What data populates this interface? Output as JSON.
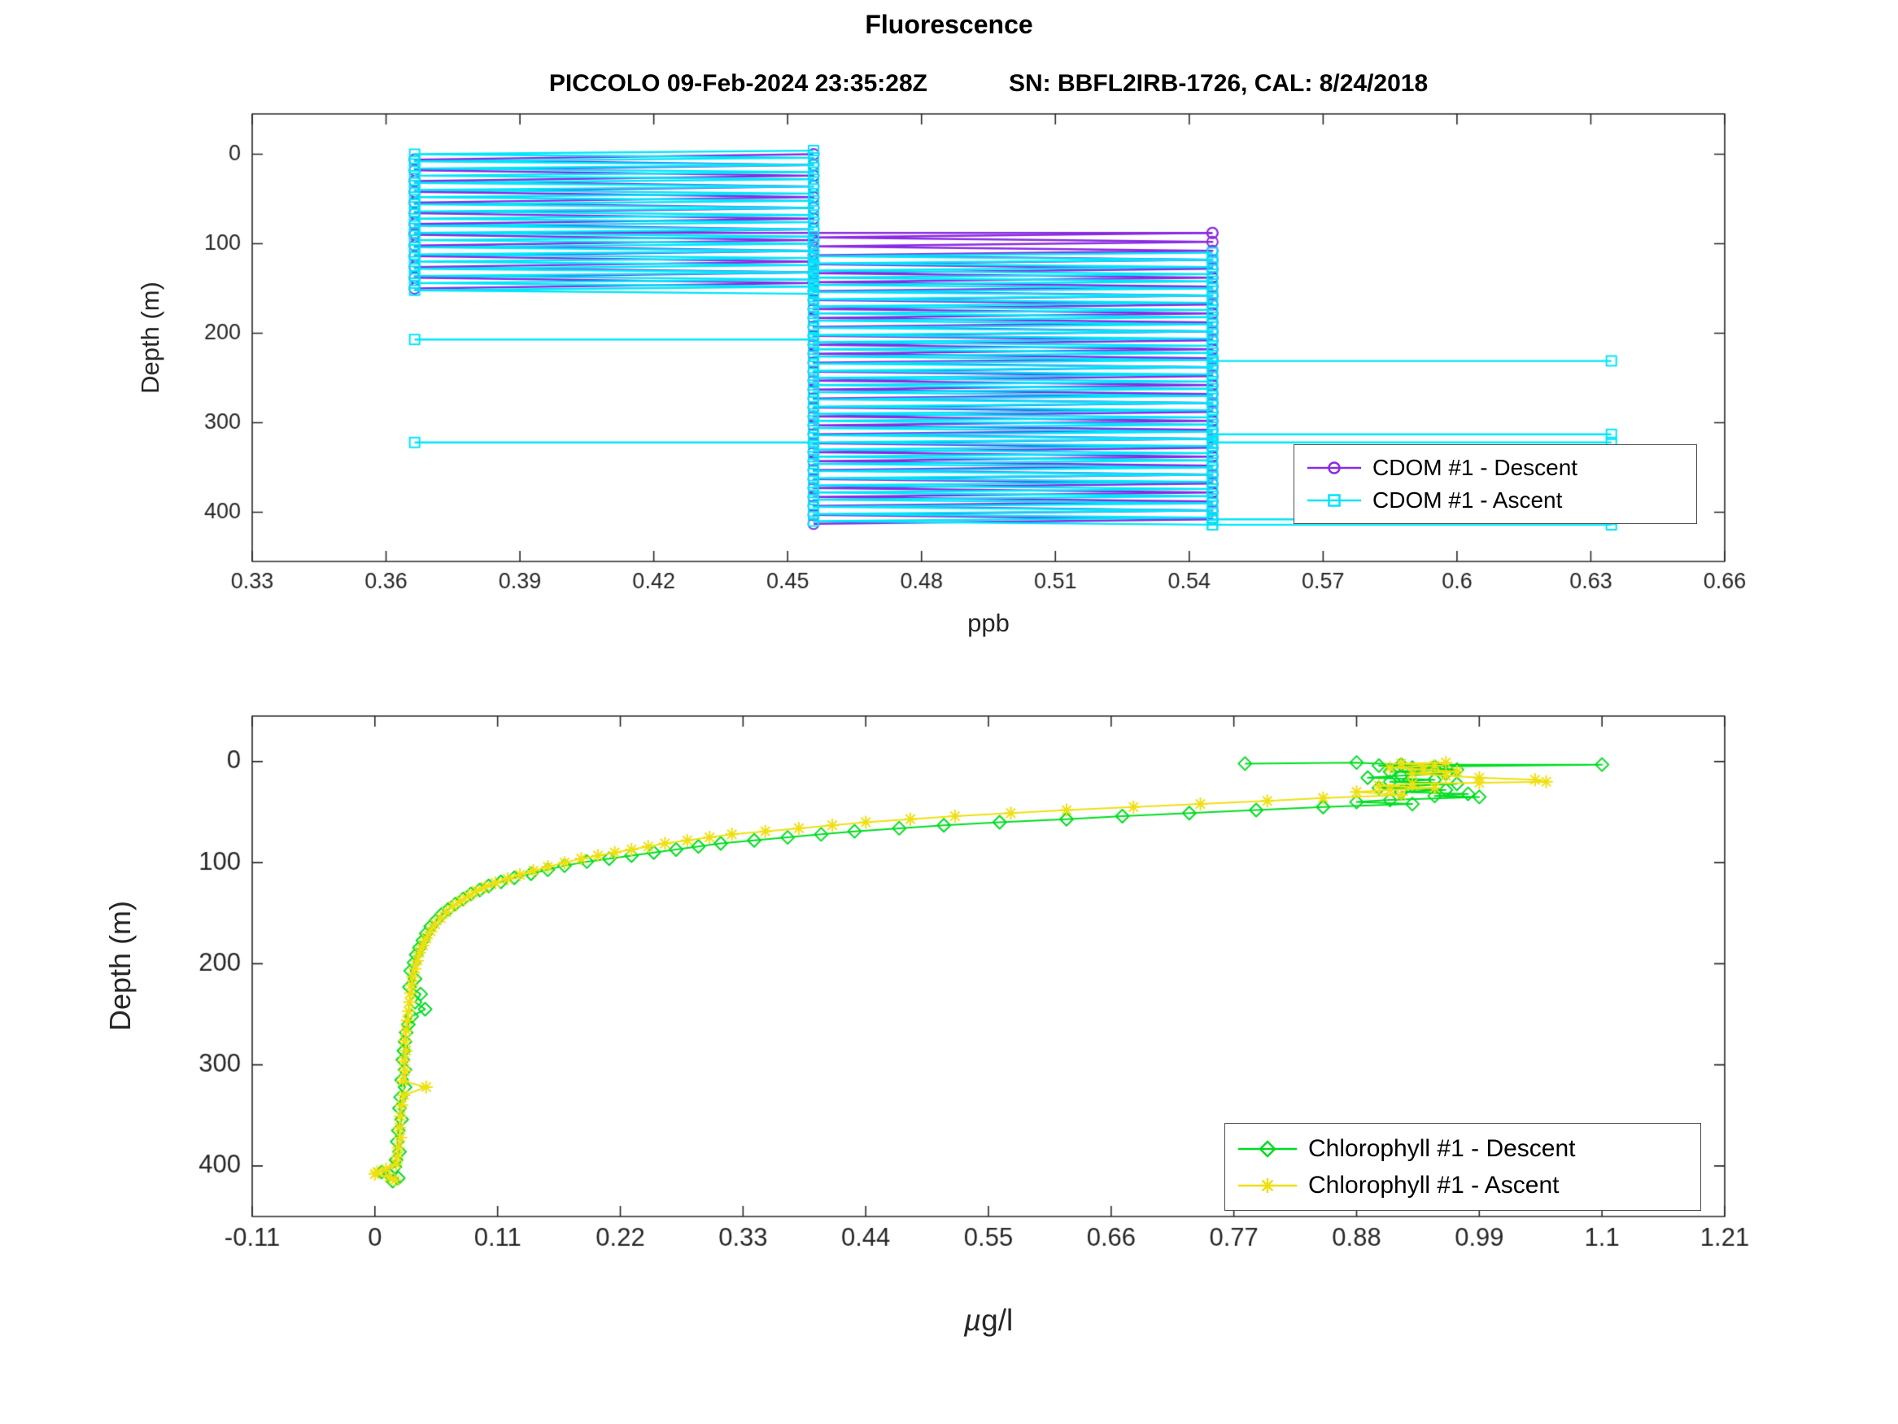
{
  "figure": {
    "title": "Fluorescence",
    "subtitle_left": "PICCOLO 09-Feb-2024 23:35:28Z",
    "subtitle_right": "SN: BBFL2IRB-1726, CAL: 8/24/2018"
  },
  "chart_data": [
    {
      "type": "line",
      "name": "cdom-depth-profile",
      "xlabel": "ppb",
      "ylabel": "Depth (m)",
      "xlim": [
        0.33,
        0.66
      ],
      "ylim_depth": [
        -45,
        455
      ],
      "grid": false,
      "legend_position": "inside-lower-right",
      "xticks": [
        0.33,
        0.36,
        0.39,
        0.42,
        0.45,
        0.48,
        0.51,
        0.54,
        0.57,
        0.6,
        0.63,
        0.66
      ],
      "xtick_labels": [
        "0.33",
        "0.36",
        "0.39",
        "0.42",
        "0.45",
        "0.48",
        "0.51",
        "0.54",
        "0.57",
        "0.6",
        "0.63",
        "0.66"
      ],
      "yticks": [
        0,
        100,
        200,
        300,
        400
      ],
      "ytick_labels": [
        "0",
        "100",
        "200",
        "300",
        "400"
      ],
      "quantization_levels": [
        0.3664,
        0.4558,
        0.5452,
        0.6346
      ],
      "legend": {
        "entries": [
          {
            "label": "CDOM #1 - Descent",
            "marker": "circle"
          },
          {
            "label": "CDOM #1 - Ascent",
            "marker": "square"
          }
        ]
      },
      "series": [
        {
          "name": "CDOM #1 - Descent",
          "color": "#8A2BE2",
          "marker": "circle",
          "zigzag_bands": [
            {
              "depth_start": 0,
              "depth_end": 155,
              "depth_step": 6,
              "x_low": 0.3664,
              "x_high": 0.4558
            },
            {
              "depth_start": 88,
              "depth_end": 413,
              "depth_step": 5,
              "x_low": 0.4558,
              "x_high": 0.5452
            }
          ],
          "spikes": [
            {
              "x": 0.3664,
              "depth": 88,
              "x_anchor": 0.5452
            }
          ]
        },
        {
          "name": "CDOM #1 - Ascent",
          "color": "#00E5FA",
          "marker": "square",
          "zigzag_bands": [
            {
              "depth_start": -4,
              "depth_end": 158,
              "depth_step": 4,
              "x_low": 0.3664,
              "x_high": 0.4558
            },
            {
              "depth_start": 110,
              "depth_end": 415,
              "depth_step": 4,
              "x_low": 0.4558,
              "x_high": 0.5452
            }
          ],
          "spikes": [
            {
              "x": 0.3664,
              "depth": 207,
              "x_anchor": 0.4558
            },
            {
              "x": 0.3664,
              "depth": 322,
              "x_anchor": 0.4558
            },
            {
              "x": 0.6346,
              "depth": 231,
              "x_anchor": 0.5452
            },
            {
              "x": 0.6346,
              "depth": 313,
              "x_anchor": 0.5452
            },
            {
              "x": 0.6346,
              "depth": 322,
              "x_anchor": 0.5452
            },
            {
              "x": 0.6346,
              "depth": 408,
              "x_anchor": 0.5452
            },
            {
              "x": 0.6346,
              "depth": 414,
              "x_anchor": 0.5452
            }
          ]
        }
      ]
    },
    {
      "type": "line",
      "name": "chlorophyll-depth-profile",
      "xlabel_mu": "µ",
      "xlabel_rest": "g/l",
      "ylabel": "Depth (m)",
      "xlim": [
        -0.11,
        1.21
      ],
      "ylim_depth": [
        -45,
        450
      ],
      "grid": false,
      "legend_position": "inside-lower-right",
      "xticks": [
        -0.11,
        0,
        0.11,
        0.22,
        0.33,
        0.44,
        0.55,
        0.66,
        0.77,
        0.88,
        0.99,
        1.1,
        1.21
      ],
      "xtick_labels": [
        "-0.11",
        "0",
        "0.11",
        "0.22",
        "0.33",
        "0.44",
        "0.55",
        "0.66",
        "0.77",
        "0.88",
        "0.99",
        "1.1",
        "1.21"
      ],
      "yticks": [
        0,
        100,
        200,
        300,
        400
      ],
      "ytick_labels": [
        "0",
        "100",
        "200",
        "300",
        "400"
      ],
      "legend": {
        "entries": [
          {
            "label": "Chlorophyll #1 - Descent",
            "marker": "diamond"
          },
          {
            "label": "Chlorophyll #1 - Ascent",
            "marker": "asterisk"
          }
        ]
      },
      "series": [
        {
          "name": "Chlorophyll #1 - Descent",
          "color": "#00DD22",
          "marker": "diamond",
          "points": [
            [
              0.78,
              2
            ],
            [
              0.88,
              1
            ],
            [
              0.92,
              3
            ],
            [
              1.1,
              3
            ],
            [
              0.95,
              5
            ],
            [
              0.9,
              4
            ],
            [
              0.93,
              6
            ],
            [
              0.97,
              8
            ],
            [
              0.91,
              10
            ],
            [
              0.96,
              12
            ],
            [
              0.92,
              14
            ],
            [
              0.89,
              16
            ],
            [
              0.95,
              18
            ],
            [
              0.91,
              20
            ],
            [
              0.97,
              22
            ],
            [
              0.93,
              24
            ],
            [
              0.9,
              26
            ],
            [
              0.96,
              28
            ],
            [
              0.92,
              30
            ],
            [
              0.98,
              32
            ],
            [
              0.95,
              34
            ],
            [
              0.99,
              35
            ],
            [
              0.91,
              38
            ],
            [
              0.88,
              40
            ],
            [
              0.93,
              42
            ],
            [
              0.85,
              45
            ],
            [
              0.79,
              48
            ],
            [
              0.73,
              51
            ],
            [
              0.67,
              54
            ],
            [
              0.62,
              57
            ],
            [
              0.56,
              60
            ],
            [
              0.51,
              63
            ],
            [
              0.47,
              66
            ],
            [
              0.43,
              69
            ],
            [
              0.4,
              72
            ],
            [
              0.37,
              75
            ],
            [
              0.34,
              78
            ],
            [
              0.31,
              81
            ],
            [
              0.29,
              84
            ],
            [
              0.27,
              87
            ],
            [
              0.25,
              90
            ],
            [
              0.23,
              93
            ],
            [
              0.21,
              96
            ],
            [
              0.19,
              99
            ],
            [
              0.17,
              103
            ],
            [
              0.155,
              107
            ],
            [
              0.14,
              111
            ],
            [
              0.125,
              115
            ],
            [
              0.113,
              119
            ],
            [
              0.102,
              123
            ],
            [
              0.094,
              127
            ],
            [
              0.086,
              131
            ],
            [
              0.079,
              136
            ],
            [
              0.072,
              141
            ],
            [
              0.066,
              146
            ],
            [
              0.06,
              151
            ],
            [
              0.055,
              157
            ],
            [
              0.05,
              163
            ],
            [
              0.046,
              170
            ],
            [
              0.043,
              177
            ],
            [
              0.04,
              184
            ],
            [
              0.037,
              191
            ],
            [
              0.035,
              199
            ],
            [
              0.032,
              207
            ],
            [
              0.036,
              215
            ],
            [
              0.031,
              223
            ],
            [
              0.041,
              230
            ],
            [
              0.036,
              238
            ],
            [
              0.045,
              245
            ],
            [
              0.033,
              252
            ],
            [
              0.03,
              260
            ],
            [
              0.028,
              268
            ],
            [
              0.027,
              277
            ],
            [
              0.026,
              286
            ],
            [
              0.025,
              295
            ],
            [
              0.027,
              305
            ],
            [
              0.024,
              315
            ],
            [
              0.027,
              322
            ],
            [
              0.023,
              332
            ],
            [
              0.022,
              343
            ],
            [
              0.024,
              354
            ],
            [
              0.021,
              365
            ],
            [
              0.02,
              376
            ],
            [
              0.022,
              386
            ],
            [
              0.019,
              394
            ],
            [
              0.018,
              401
            ],
            [
              0.006,
              406
            ],
            [
              0.013,
              409
            ],
            [
              0.021,
              412
            ],
            [
              0.016,
              415
            ]
          ]
        },
        {
          "name": "Chlorophyll #1 - Ascent",
          "color": "#EFDF10",
          "marker": "asterisk",
          "points": [
            [
              0.96,
              1
            ],
            [
              0.92,
              2
            ],
            [
              0.95,
              4
            ],
            [
              0.91,
              6
            ],
            [
              0.94,
              8
            ],
            [
              0.97,
              10
            ],
            [
              0.93,
              12
            ],
            [
              0.96,
              14
            ],
            [
              0.99,
              16
            ],
            [
              1.04,
              18
            ],
            [
              1.05,
              20
            ],
            [
              0.99,
              21
            ],
            [
              0.93,
              22
            ],
            [
              0.9,
              24
            ],
            [
              0.95,
              26
            ],
            [
              0.91,
              28
            ],
            [
              0.88,
              30
            ],
            [
              0.92,
              33
            ],
            [
              0.85,
              36
            ],
            [
              0.8,
              39
            ],
            [
              0.74,
              42
            ],
            [
              0.68,
              45
            ],
            [
              0.62,
              48
            ],
            [
              0.57,
              51
            ],
            [
              0.52,
              54
            ],
            [
              0.48,
              57
            ],
            [
              0.44,
              60
            ],
            [
              0.41,
              63
            ],
            [
              0.38,
              66
            ],
            [
              0.35,
              69
            ],
            [
              0.32,
              72
            ],
            [
              0.3,
              75
            ],
            [
              0.28,
              78
            ],
            [
              0.26,
              81
            ],
            [
              0.245,
              84
            ],
            [
              0.23,
              87
            ],
            [
              0.215,
              90
            ],
            [
              0.2,
              93
            ],
            [
              0.185,
              96
            ],
            [
              0.17,
              100
            ],
            [
              0.155,
              104
            ],
            [
              0.142,
              108
            ],
            [
              0.13,
              112
            ],
            [
              0.119,
              116
            ],
            [
              0.108,
              120
            ],
            [
              0.099,
              124
            ],
            [
              0.091,
              128
            ],
            [
              0.084,
              133
            ],
            [
              0.077,
              138
            ],
            [
              0.07,
              143
            ],
            [
              0.064,
              149
            ],
            [
              0.059,
              155
            ],
            [
              0.054,
              161
            ],
            [
              0.05,
              168
            ],
            [
              0.046,
              175
            ],
            [
              0.043,
              182
            ],
            [
              0.04,
              189
            ],
            [
              0.038,
              197
            ],
            [
              0.036,
              205
            ],
            [
              0.034,
              213
            ],
            [
              0.033,
              221
            ],
            [
              0.032,
              229
            ],
            [
              0.031,
              238
            ],
            [
              0.03,
              247
            ],
            [
              0.029,
              256
            ],
            [
              0.028,
              266
            ],
            [
              0.027,
              276
            ],
            [
              0.028,
              286
            ],
            [
              0.026,
              296
            ],
            [
              0.027,
              306
            ],
            [
              0.025,
              316
            ],
            [
              0.046,
              322
            ],
            [
              0.026,
              330
            ],
            [
              0.024,
              340
            ],
            [
              0.023,
              351
            ],
            [
              0.022,
              362
            ],
            [
              0.023,
              372
            ],
            [
              0.021,
              382
            ],
            [
              0.02,
              391
            ],
            [
              0.019,
              398
            ],
            [
              0.01,
              403
            ],
            [
              0.002,
              406
            ],
            [
              0.0,
              408
            ],
            [
              0.013,
              411
            ],
            [
              0.018,
              414
            ]
          ]
        }
      ]
    }
  ]
}
